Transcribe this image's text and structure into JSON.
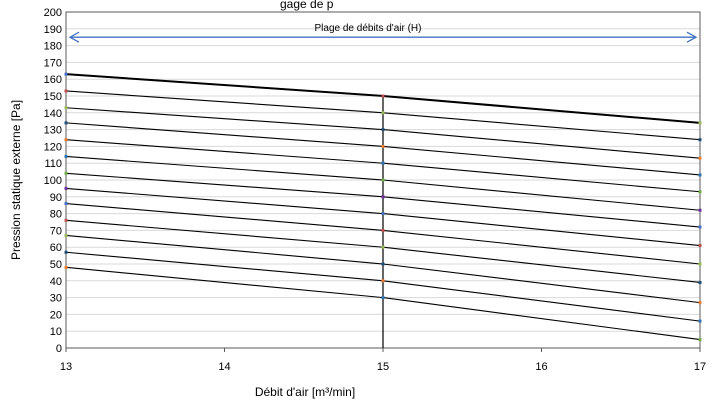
{
  "chart_data": {
    "type": "line",
    "title_partial": "gage de p",
    "xlabel": "Débit d'air [m³/min]",
    "ylabel": "Pression statique externe [Pa]",
    "xlim": [
      13,
      17
    ],
    "ylim": [
      0,
      200
    ],
    "x_ticks": [
      13,
      14,
      15,
      16,
      17
    ],
    "y_ticks": [
      0,
      10,
      20,
      30,
      40,
      50,
      60,
      70,
      80,
      90,
      100,
      110,
      120,
      130,
      140,
      150,
      160,
      170,
      180,
      190,
      200
    ],
    "grid": true,
    "legend": "none",
    "vertical_marker_x": 15,
    "range_annotation": {
      "label": "Plage de débits d'air (H)",
      "x_from": 13,
      "x_to": 17,
      "y": 185,
      "color": "#4472c4"
    },
    "x": [
      13,
      15,
      17
    ],
    "series": [
      {
        "values": [
          163,
          150,
          134
        ],
        "bold": true
      },
      {
        "values": [
          153,
          140,
          124
        ]
      },
      {
        "values": [
          143,
          130,
          113
        ]
      },
      {
        "values": [
          134,
          120,
          103
        ]
      },
      {
        "values": [
          124,
          110,
          93
        ]
      },
      {
        "values": [
          114,
          100,
          82
        ]
      },
      {
        "values": [
          104,
          90,
          72
        ]
      },
      {
        "values": [
          95,
          80,
          61
        ]
      },
      {
        "values": [
          86,
          70,
          50
        ]
      },
      {
        "values": [
          76,
          60,
          39
        ]
      },
      {
        "values": [
          67,
          50,
          27
        ]
      },
      {
        "values": [
          57,
          40,
          16
        ]
      },
      {
        "values": [
          48,
          30,
          5
        ]
      }
    ],
    "line_color": "#000000",
    "marker_colors": [
      "#4472c4",
      "#c0504d",
      "#9bbb59",
      "#1f4e79",
      "#ed7d31",
      "#2e75b6",
      "#70ad47",
      "#7030a0"
    ]
  }
}
